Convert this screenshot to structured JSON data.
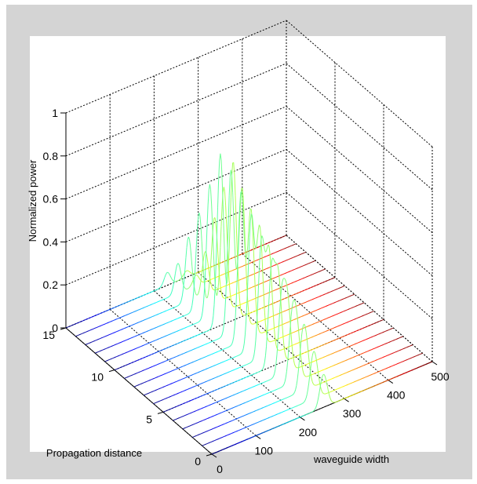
{
  "chart_data": {
    "type": "line",
    "subtype": "3d-waterfall",
    "title": "",
    "xlabel": "waveguide width",
    "ylabel": "Propagation distance",
    "zlabel": "Normalized power",
    "xlim": [
      0,
      500
    ],
    "ylim": [
      0,
      15
    ],
    "zlim": [
      0,
      1
    ],
    "x_ticks": [
      "0",
      "100",
      "200",
      "300",
      "400",
      "500"
    ],
    "y_ticks": [
      "0",
      "5",
      "10",
      "15"
    ],
    "z_ticks": [
      "0",
      "0.2",
      "0.4",
      "0.6",
      "0.8",
      "1"
    ],
    "grid": true,
    "colormap": "jet",
    "series_count": 16,
    "series": [
      {
        "y": 0,
        "peaks": [
          {
            "x": 250,
            "h": 0.1
          },
          {
            "x": 258,
            "h": 0.08
          }
        ]
      },
      {
        "y": 1,
        "peaks": [
          {
            "x": 250,
            "h": 0.14
          },
          {
            "x": 258,
            "h": 0.12
          }
        ]
      },
      {
        "y": 2,
        "peaks": [
          {
            "x": 249,
            "h": 0.2
          },
          {
            "x": 258,
            "h": 0.18
          }
        ]
      },
      {
        "y": 3,
        "peaks": [
          {
            "x": 248,
            "h": 0.28
          },
          {
            "x": 259,
            "h": 0.24
          }
        ]
      },
      {
        "y": 4,
        "peaks": [
          {
            "x": 247,
            "h": 0.36
          },
          {
            "x": 260,
            "h": 0.32
          }
        ]
      },
      {
        "y": 5,
        "peaks": [
          {
            "x": 246,
            "h": 0.45
          },
          {
            "x": 261,
            "h": 0.4
          }
        ]
      },
      {
        "y": 6,
        "peaks": [
          {
            "x": 245,
            "h": 0.54
          },
          {
            "x": 262,
            "h": 0.48
          }
        ]
      },
      {
        "y": 7,
        "peaks": [
          {
            "x": 244,
            "h": 0.62
          },
          {
            "x": 263,
            "h": 0.55
          }
        ]
      },
      {
        "y": 8,
        "peaks": [
          {
            "x": 243,
            "h": 0.7
          },
          {
            "x": 265,
            "h": 0.6
          }
        ]
      },
      {
        "y": 9,
        "peaks": [
          {
            "x": 242,
            "h": 0.76
          },
          {
            "x": 267,
            "h": 0.66
          }
        ]
      },
      {
        "y": 10,
        "peaks": [
          {
            "x": 240,
            "h": 0.8
          },
          {
            "x": 269,
            "h": 0.74
          }
        ]
      },
      {
        "y": 11,
        "peaks": [
          {
            "x": 238,
            "h": 0.62
          },
          {
            "x": 270,
            "h": 0.58
          }
        ]
      },
      {
        "y": 12,
        "peaks": [
          {
            "x": 236,
            "h": 0.45
          },
          {
            "x": 271,
            "h": 0.4
          }
        ]
      },
      {
        "y": 13,
        "peaks": [
          {
            "x": 234,
            "h": 0.3
          },
          {
            "x": 272,
            "h": 0.2
          }
        ]
      },
      {
        "y": 14,
        "peaks": [
          {
            "x": 232,
            "h": 0.14
          },
          {
            "x": 273,
            "h": 0.05
          }
        ]
      },
      {
        "y": 15,
        "peaks": [
          {
            "x": 230,
            "h": 0.06
          },
          {
            "x": 274,
            "h": 0.03
          }
        ]
      }
    ],
    "peak_width": 7
  }
}
